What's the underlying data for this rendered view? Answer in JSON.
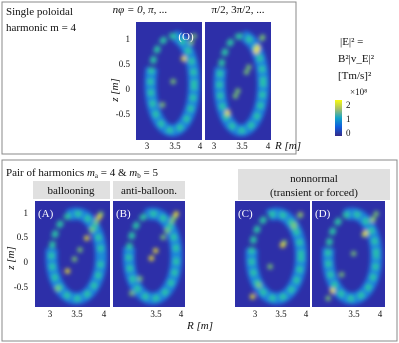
{
  "top": {
    "title_lines": [
      "Single poloidal",
      "harmonic m = 4"
    ],
    "column_headers": [
      "nφ = 0, π, ...",
      "π/2, 3π/2, ..."
    ],
    "panel_label": "(O)",
    "y_axis_label": "z [m]",
    "x_axis_label": "R [m]",
    "yticks": [
      "1",
      "0.5",
      "0",
      "-0.5"
    ],
    "xticks": [
      [
        "3",
        "3.5",
        "4"
      ],
      [
        "3",
        "3.5",
        "4"
      ]
    ]
  },
  "legend": {
    "lines": [
      "|E|² =",
      "B²|v_E|²",
      "[Tm/s]²"
    ],
    "scale": "×10⁸",
    "ticks": [
      "2",
      "1",
      "0"
    ]
  },
  "bottom": {
    "title_parts": [
      "Pair of harmonics",
      "m",
      "a",
      "= 4 &",
      "m",
      "b",
      "= 5"
    ],
    "groups": [
      "ballooning",
      "anti-balloon.",
      "nonnormal",
      "(transient or forced)"
    ],
    "panel_labels": [
      "(A)",
      "(B)",
      "(C)",
      "(D)"
    ],
    "y_axis_label": "z [m]",
    "x_axis_label": "R [m]",
    "yticks": [
      "1",
      "0.5",
      "0",
      "-0.5"
    ],
    "xticks": [
      [
        "3",
        "3.5",
        "4"
      ],
      [
        "3.5",
        "4"
      ],
      [
        "3",
        "3.5",
        "4"
      ],
      [
        "3.5",
        "4"
      ]
    ]
  }
}
